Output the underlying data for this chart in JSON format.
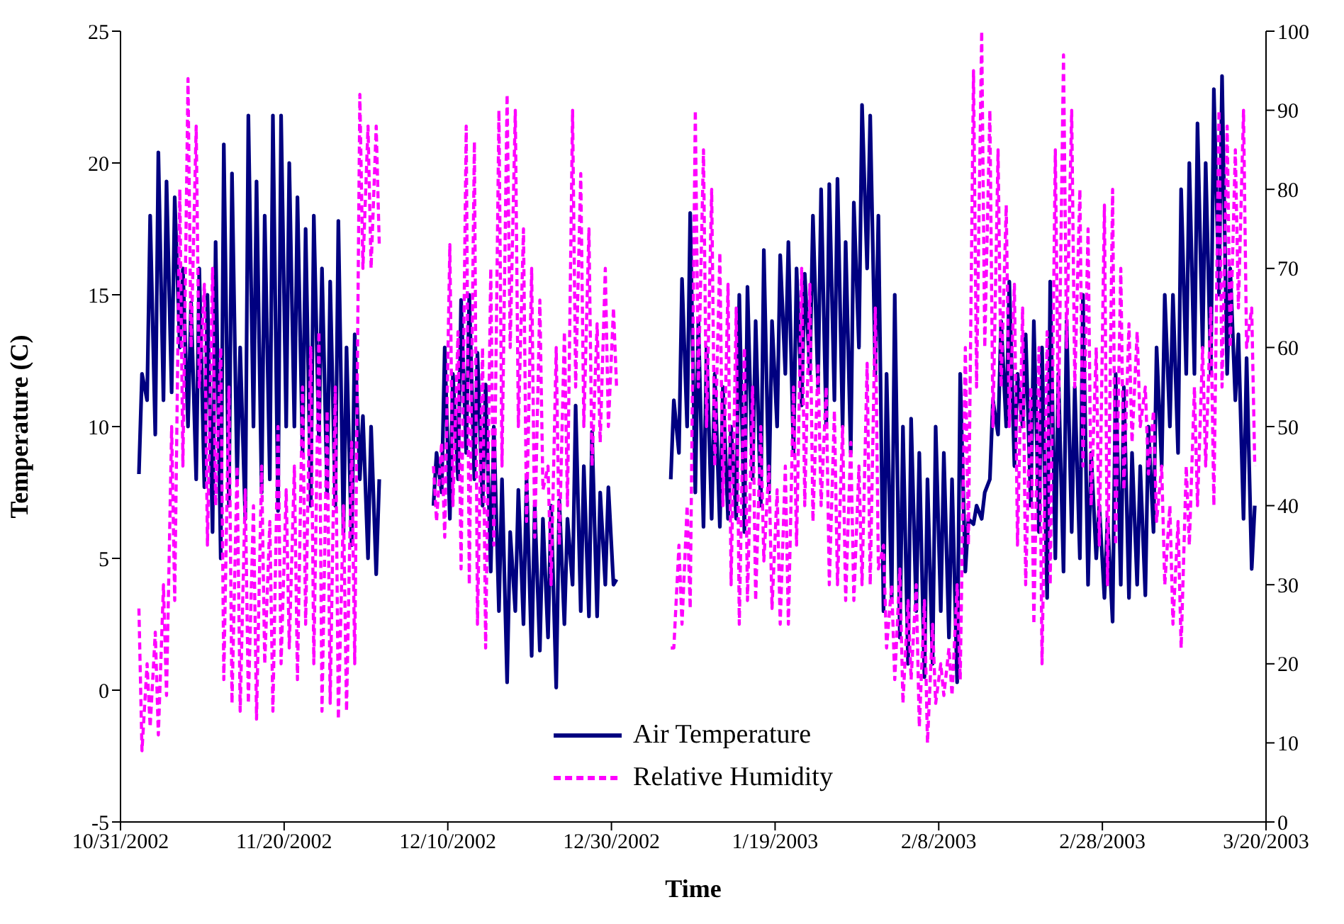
{
  "chart_data": {
    "type": "line",
    "xlabel": "Time",
    "ylabel": "Temperature (C)",
    "x": [
      "2002-11-02T06:00",
      "2002-11-02T15:00",
      "2002-11-03T06:00",
      "2002-11-03T15:00",
      "2002-11-04T06:00",
      "2002-11-04T15:00",
      "2002-11-05T06:00",
      "2002-11-05T15:00",
      "2002-11-06T06:00",
      "2002-11-06T15:00",
      "2002-11-07T06:00",
      "2002-11-07T15:00",
      "2002-11-08T06:00",
      "2002-11-08T15:00",
      "2002-11-09T06:00",
      "2002-11-09T15:00",
      "2002-11-10T06:00",
      "2002-11-10T15:00",
      "2002-11-11T06:00",
      "2002-11-11T15:00",
      "2002-11-12T06:00",
      "2002-11-12T15:00",
      "2002-11-13T06:00",
      "2002-11-13T15:00",
      "2002-11-14T06:00",
      "2002-11-14T15:00",
      "2002-11-15T06:00",
      "2002-11-15T15:00",
      "2002-11-16T06:00",
      "2002-11-16T15:00",
      "2002-11-17T06:00",
      "2002-11-17T15:00",
      "2002-11-18T06:00",
      "2002-11-18T15:00",
      "2002-11-19T06:00",
      "2002-11-19T15:00",
      "2002-11-20T06:00",
      "2002-11-20T15:00",
      "2002-11-21T06:00",
      "2002-11-21T15:00",
      "2002-11-22T06:00",
      "2002-11-22T15:00",
      "2002-11-23T06:00",
      "2002-11-23T15:00",
      "2002-11-24T06:00",
      "2002-11-24T15:00",
      "2002-11-25T06:00",
      "2002-11-25T15:00",
      "2002-11-26T06:00",
      "2002-11-26T15:00",
      "2002-11-27T06:00",
      "2002-11-27T15:00",
      "2002-11-28T06:00",
      "2002-11-28T15:00",
      "2002-11-29T06:00",
      "2002-11-29T15:00",
      "2002-11-30T06:00",
      "2002-11-30T15:00",
      "2002-12-01T06:00",
      "2002-12-01T15:00",
      "2002-12-04T12:00",
      "2002-12-08T06:00",
      "2002-12-08T15:00",
      "2002-12-09T06:00",
      "2002-12-09T15:00",
      "2002-12-10T06:00",
      "2002-12-10T15:00",
      "2002-12-11T06:00",
      "2002-12-11T15:00",
      "2002-12-12T06:00",
      "2002-12-12T15:00",
      "2002-12-13T06:00",
      "2002-12-13T15:00",
      "2002-12-14T06:00",
      "2002-12-14T15:00",
      "2002-12-15T06:00",
      "2002-12-15T15:00",
      "2002-12-16T06:00",
      "2002-12-16T15:00",
      "2002-12-17T06:00",
      "2002-12-17T15:00",
      "2002-12-18T06:00",
      "2002-12-18T15:00",
      "2002-12-19T06:00",
      "2002-12-19T15:00",
      "2002-12-20T06:00",
      "2002-12-20T15:00",
      "2002-12-21T06:00",
      "2002-12-21T15:00",
      "2002-12-22T06:00",
      "2002-12-22T15:00",
      "2002-12-23T06:00",
      "2002-12-23T15:00",
      "2002-12-24T06:00",
      "2002-12-24T15:00",
      "2002-12-25T06:00",
      "2002-12-25T15:00",
      "2002-12-26T06:00",
      "2002-12-26T15:00",
      "2002-12-27T06:00",
      "2002-12-27T15:00",
      "2002-12-28T06:00",
      "2002-12-28T15:00",
      "2002-12-29T06:00",
      "2002-12-29T15:00",
      "2002-12-30T06:00",
      "2002-12-30T15:00",
      "2003-01-02T12:00",
      "2003-01-06T06:00",
      "2003-01-06T15:00",
      "2003-01-07T06:00",
      "2003-01-07T15:00",
      "2003-01-08T06:00",
      "2003-01-08T15:00",
      "2003-01-09T06:00",
      "2003-01-09T15:00",
      "2003-01-10T06:00",
      "2003-01-10T15:00",
      "2003-01-11T06:00",
      "2003-01-11T15:00",
      "2003-01-12T06:00",
      "2003-01-12T15:00",
      "2003-01-13T06:00",
      "2003-01-13T15:00",
      "2003-01-14T06:00",
      "2003-01-14T15:00",
      "2003-01-15T06:00",
      "2003-01-15T15:00",
      "2003-01-16T06:00",
      "2003-01-16T15:00",
      "2003-01-17T06:00",
      "2003-01-17T15:00",
      "2003-01-18T06:00",
      "2003-01-18T15:00",
      "2003-01-19T06:00",
      "2003-01-19T15:00",
      "2003-01-20T06:00",
      "2003-01-20T15:00",
      "2003-01-21T06:00",
      "2003-01-21T15:00",
      "2003-01-22T06:00",
      "2003-01-22T15:00",
      "2003-01-23T06:00",
      "2003-01-23T15:00",
      "2003-01-24T06:00",
      "2003-01-24T15:00",
      "2003-01-25T06:00",
      "2003-01-25T15:00",
      "2003-01-26T06:00",
      "2003-01-26T15:00",
      "2003-01-27T06:00",
      "2003-01-27T15:00",
      "2003-01-28T06:00",
      "2003-01-28T15:00",
      "2003-01-29T06:00",
      "2003-01-29T15:00",
      "2003-01-30T06:00",
      "2003-01-30T15:00",
      "2003-01-31T06:00",
      "2003-01-31T15:00",
      "2003-02-01T06:00",
      "2003-02-01T15:00",
      "2003-02-02T06:00",
      "2003-02-02T15:00",
      "2003-02-03T06:00",
      "2003-02-03T15:00",
      "2003-02-04T06:00",
      "2003-02-04T15:00",
      "2003-02-05T06:00",
      "2003-02-05T15:00",
      "2003-02-06T06:00",
      "2003-02-06T15:00",
      "2003-02-07T06:00",
      "2003-02-07T15:00",
      "2003-02-08T06:00",
      "2003-02-08T15:00",
      "2003-02-09T06:00",
      "2003-02-09T15:00",
      "2003-02-10T06:00",
      "2003-02-10T15:00",
      "2003-02-11T06:00",
      "2003-02-11T15:00",
      "2003-02-12T06:00",
      "2003-02-12T15:00",
      "2003-02-13T06:00",
      "2003-02-13T15:00",
      "2003-02-14T06:00",
      "2003-02-14T15:00",
      "2003-02-15T06:00",
      "2003-02-15T15:00",
      "2003-02-16T06:00",
      "2003-02-16T15:00",
      "2003-02-17T06:00",
      "2003-02-17T15:00",
      "2003-02-18T06:00",
      "2003-02-18T15:00",
      "2003-02-19T06:00",
      "2003-02-19T15:00",
      "2003-02-20T06:00",
      "2003-02-20T15:00",
      "2003-02-21T06:00",
      "2003-02-21T15:00",
      "2003-02-22T06:00",
      "2003-02-22T15:00",
      "2003-02-23T06:00",
      "2003-02-23T15:00",
      "2003-02-24T06:00",
      "2003-02-24T15:00",
      "2003-02-25T06:00",
      "2003-02-25T15:00",
      "2003-02-26T06:00",
      "2003-02-26T15:00",
      "2003-02-27T06:00",
      "2003-02-27T15:00",
      "2003-02-28T06:00",
      "2003-02-28T15:00",
      "2003-03-01T06:00",
      "2003-03-01T15:00",
      "2003-03-02T06:00",
      "2003-03-02T15:00",
      "2003-03-03T06:00",
      "2003-03-03T15:00",
      "2003-03-04T06:00",
      "2003-03-04T15:00",
      "2003-03-05T06:00",
      "2003-03-05T15:00",
      "2003-03-06T06:00",
      "2003-03-06T15:00",
      "2003-03-07T06:00",
      "2003-03-07T15:00",
      "2003-03-08T06:00",
      "2003-03-08T15:00",
      "2003-03-09T06:00",
      "2003-03-09T15:00",
      "2003-03-10T06:00",
      "2003-03-10T15:00",
      "2003-03-11T06:00",
      "2003-03-11T15:00",
      "2003-03-12T06:00",
      "2003-03-12T15:00",
      "2003-03-13T06:00",
      "2003-03-13T15:00",
      "2003-03-14T06:00",
      "2003-03-14T15:00",
      "2003-03-15T06:00",
      "2003-03-15T15:00",
      "2003-03-16T06:00",
      "2003-03-16T15:00",
      "2003-03-17T06:00",
      "2003-03-17T15:00",
      "2003-03-18T06:00",
      "2003-03-18T15:00"
    ],
    "series": [
      {
        "name": "Air Temperature",
        "color": "#000080",
        "line_style": "solid",
        "values": [
          8.2,
          12,
          11,
          18,
          9.7,
          20.4,
          11,
          19.3,
          11.3,
          18.7,
          13,
          16,
          10,
          14.7,
          8,
          16,
          7.7,
          15,
          6,
          17,
          5,
          20.7,
          7,
          19.6,
          8,
          13,
          6.5,
          21.8,
          10,
          19.3,
          7.5,
          18,
          8,
          21.8,
          6.8,
          21.8,
          10,
          20,
          10,
          18.7,
          9,
          17.5,
          7,
          18,
          9.5,
          16,
          7.5,
          15.5,
          7,
          17.8,
          6,
          13,
          5.5,
          13.5,
          8,
          10.4,
          5,
          10,
          4.4,
          8,
          null,
          7,
          9,
          7.5,
          13,
          6.5,
          12,
          8,
          14.8,
          9,
          15,
          8,
          12.8,
          7,
          11.6,
          4.5,
          10,
          3,
          8,
          0.3,
          6,
          3,
          7.6,
          2.5,
          8,
          1.3,
          7,
          1.5,
          6.5,
          2,
          7,
          0.1,
          7.2,
          2.5,
          6.5,
          4,
          10.8,
          3,
          8.5,
          2.8,
          9.8,
          2.8,
          7.5,
          4,
          7.7,
          4,
          4.2,
          null,
          8,
          11,
          9,
          15.6,
          10,
          18.1,
          7.5,
          14,
          6.2,
          13,
          6.5,
          12,
          6.2,
          11.5,
          6.5,
          10,
          6.5,
          15,
          6,
          15.3,
          8,
          14,
          7,
          16.7,
          7.5,
          14,
          10,
          16.5,
          12,
          17,
          9,
          16,
          10.8,
          15.8,
          12,
          18,
          11.5,
          19,
          10,
          19.2,
          11,
          19.4,
          10,
          17,
          9,
          18.5,
          13,
          22.2,
          16,
          21.8,
          12,
          18,
          3,
          12,
          3.5,
          15,
          2,
          10,
          1,
          10.3,
          3,
          9,
          0.5,
          8,
          1,
          10,
          3,
          9,
          2,
          8,
          0.3,
          12,
          4.5,
          6.5,
          6.3,
          7,
          6.5,
          7.5,
          8,
          11,
          9.7,
          14,
          10,
          15.5,
          8.5,
          12,
          10,
          13.5,
          7,
          14,
          6,
          13,
          3.5,
          15.5,
          5,
          12,
          4.5,
          14,
          6,
          11.5,
          5,
          15,
          4,
          9,
          5,
          7,
          3.5,
          6.5,
          2.6,
          12,
          4,
          11.5,
          3.5,
          9,
          4,
          8.5,
          3.6,
          10,
          6,
          13,
          8.5,
          15,
          10,
          15,
          9,
          19,
          12,
          20,
          12,
          21.5,
          13,
          20,
          12,
          22.8,
          15,
          23.3,
          12,
          16,
          11,
          13.5,
          6.5,
          12.6,
          4.6,
          7
        ]
      },
      {
        "name": "Relative Humidity",
        "color": "#ff00ff",
        "line_style": "dashed",
        "axis": "y2",
        "values": [
          27,
          9,
          20,
          12,
          24,
          11,
          30,
          16,
          50,
          28,
          80,
          45,
          94,
          60,
          88,
          55,
          68,
          35,
          70,
          40,
          60,
          18,
          55,
          15,
          45,
          14,
          42,
          15,
          40,
          13,
          45,
          20,
          38,
          14,
          50,
          20,
          42,
          22,
          45,
          18,
          55,
          25,
          60,
          20,
          62,
          14,
          52,
          15,
          55,
          13,
          40,
          14,
          48,
          20,
          92,
          70,
          88,
          70,
          88,
          73,
          null,
          45,
          38,
          48,
          36,
          73,
          40,
          62,
          32,
          88,
          30,
          86,
          25,
          60,
          22,
          70,
          35,
          90,
          45,
          92,
          60,
          90,
          50,
          75,
          38,
          70,
          36,
          66,
          42,
          45,
          30,
          60,
          35,
          62,
          40,
          90,
          55,
          82,
          50,
          75,
          45,
          63,
          48,
          70,
          50,
          65,
          55,
          null,
          22,
          22,
          35,
          25,
          40,
          27,
          90,
          55,
          85,
          50,
          80,
          45,
          72,
          40,
          68,
          30,
          65,
          25,
          60,
          28,
          55,
          28,
          50,
          33,
          45,
          27,
          42,
          25,
          45,
          25,
          55,
          35,
          70,
          40,
          68,
          38,
          58,
          40,
          55,
          30,
          52,
          30,
          50,
          28,
          48,
          28,
          45,
          30,
          58,
          30,
          65,
          32,
          35,
          22,
          30,
          18,
          32,
          15,
          28,
          18,
          30,
          12,
          28,
          10,
          25,
          15,
          20,
          16,
          22,
          16,
          30,
          18,
          60,
          35,
          95,
          55,
          100,
          60,
          90,
          50,
          85,
          55,
          78,
          50,
          68,
          35,
          65,
          30,
          55,
          25,
          60,
          20,
          62,
          30,
          85,
          50,
          97,
          60,
          90,
          55,
          80,
          45,
          75,
          40,
          60,
          35,
          78,
          30,
          80,
          35,
          70,
          42,
          63,
          48,
          62,
          50,
          55,
          44,
          52,
          38,
          45,
          30,
          40,
          25,
          38,
          22,
          45,
          35,
          55,
          40,
          60,
          45,
          65,
          40,
          90,
          55,
          88,
          60,
          85,
          65,
          90,
          60,
          65,
          45
        ]
      }
    ],
    "xlim": [
      "2002-10-31",
      "2003-03-20"
    ],
    "xticks": [
      {
        "value": "2002-10-31",
        "label": "10/31/2002"
      },
      {
        "value": "2002-11-20",
        "label": "11/20/2002"
      },
      {
        "value": "2002-12-10",
        "label": "12/10/2002"
      },
      {
        "value": "2002-12-30",
        "label": "12/30/2002"
      },
      {
        "value": "2003-01-19",
        "label": "1/19/2003"
      },
      {
        "value": "2003-02-08",
        "label": "2/8/2003"
      },
      {
        "value": "2003-02-28",
        "label": "2/28/2003"
      },
      {
        "value": "2003-03-20",
        "label": "3/20/2003"
      }
    ],
    "ylim": [
      -5,
      25
    ],
    "yticks": [
      -5,
      0,
      5,
      10,
      15,
      20,
      25
    ],
    "y2lim": [
      0,
      100
    ],
    "y2ticks": [
      0,
      10,
      20,
      30,
      40,
      50,
      60,
      70,
      80,
      90,
      100
    ],
    "grid": false,
    "legend": "bottom",
    "marker": "none"
  }
}
